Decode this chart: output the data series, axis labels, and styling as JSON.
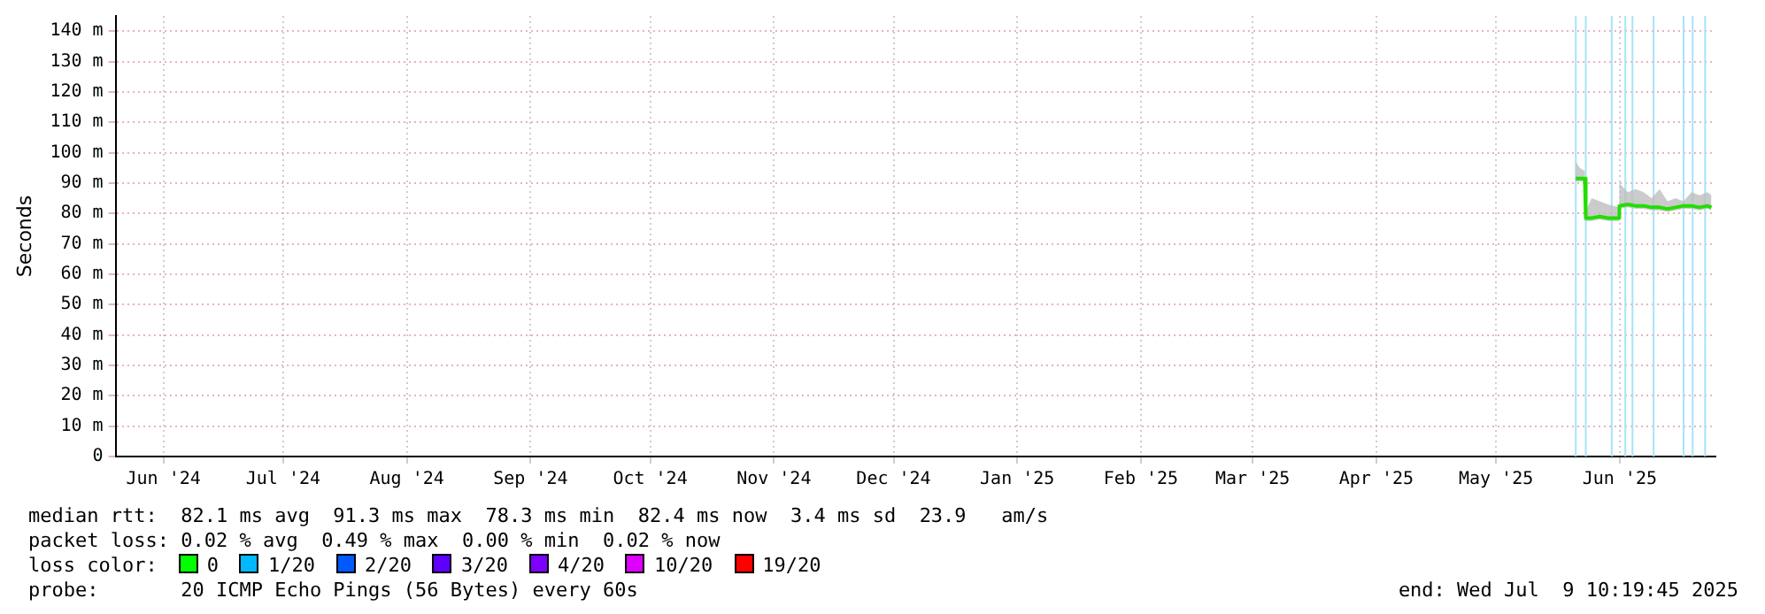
{
  "chart_data": {
    "type": "line",
    "ylabel": "Seconds",
    "xlim": [
      "2024-06-03",
      "2025-07-09"
    ],
    "xticks": [
      {
        "value": "2024-06-15",
        "label": "Jun '24"
      },
      {
        "value": "2024-07-15",
        "label": "Jul '24"
      },
      {
        "value": "2024-08-15",
        "label": "Aug '24"
      },
      {
        "value": "2024-09-15",
        "label": "Sep '24"
      },
      {
        "value": "2024-10-15",
        "label": "Oct '24"
      },
      {
        "value": "2024-11-15",
        "label": "Nov '24"
      },
      {
        "value": "2024-12-15",
        "label": "Dec '24"
      },
      {
        "value": "2025-01-15",
        "label": "Jan '25"
      },
      {
        "value": "2025-02-15",
        "label": "Feb '25"
      },
      {
        "value": "2025-03-15",
        "label": "Mar '25"
      },
      {
        "value": "2025-04-15",
        "label": "Apr '25"
      },
      {
        "value": "2025-05-15",
        "label": "May '25"
      },
      {
        "value": "2025-06-15",
        "label": "Jun '25"
      }
    ],
    "ylim": [
      0,
      145
    ],
    "yticks": [
      0,
      {
        "value": 10,
        "label": "10 m"
      },
      {
        "value": 20,
        "label": "20 m"
      },
      {
        "value": 30,
        "label": "30 m"
      },
      {
        "value": 40,
        "label": "40 m"
      },
      {
        "value": 50,
        "label": "50 m"
      },
      {
        "value": 60,
        "label": "60 m"
      },
      {
        "value": 70,
        "label": "70 m"
      },
      {
        "value": 80,
        "label": "80 m"
      },
      {
        "value": 90,
        "label": "90 m"
      },
      {
        "value": 100,
        "label": "100 m"
      },
      {
        "value": 110,
        "label": "110 m"
      },
      {
        "value": 120,
        "label": "120 m"
      },
      {
        "value": 130,
        "label": "130 m"
      },
      {
        "value": 140,
        "label": "140 m"
      }
    ],
    "grid": true,
    "legend": false,
    "marker": "none",
    "line_style": "solid",
    "x": [
      "2025-06-04",
      "2025-06-05",
      "2025-06-06T06:00",
      "2025-06-06T12:00",
      "2025-06-08",
      "2025-06-10",
      "2025-06-12",
      "2025-06-14T18:00",
      "2025-06-14T20:00",
      "2025-06-15",
      "2025-06-17",
      "2025-06-19",
      "2025-06-21",
      "2025-06-23",
      "2025-06-25",
      "2025-06-27",
      "2025-06-29",
      "2025-07-01",
      "2025-07-03",
      "2025-07-05",
      "2025-07-07",
      "2025-07-08"
    ],
    "series": [
      {
        "color": "#22dd00",
        "values": [
          91.5,
          91.5,
          91.5,
          78.5,
          78.5,
          79,
          78.5,
          78.5,
          82,
          82.5,
          83,
          82.5,
          82.5,
          82,
          82,
          81.5,
          82,
          82.5,
          82.5,
          82,
          82.5,
          82
        ],
        "lower": [
          90.5,
          90.5,
          90.5,
          77.5,
          77.5,
          78,
          77.5,
          77.5,
          81,
          81.5,
          82,
          81.5,
          81.5,
          81,
          81,
          80.5,
          81,
          81.5,
          81.5,
          81,
          81.5,
          81
        ],
        "upper": [
          97,
          95,
          94,
          81,
          85,
          84,
          83,
          82,
          82,
          90,
          87,
          88,
          87,
          85,
          88,
          84,
          85,
          84,
          87,
          86,
          87,
          86
        ]
      }
    ],
    "ref_lines": [
      {
        "axis": "x",
        "value": "2025-06-04",
        "color": "#a6e4f8"
      },
      {
        "axis": "x",
        "value": "2025-06-06T12:00",
        "color": "#a6e4f8"
      },
      {
        "axis": "x",
        "value": "2025-06-13",
        "color": "#a6e4f8"
      },
      {
        "axis": "x",
        "value": "2025-06-16T10:00",
        "color": "#a6e4f8"
      },
      {
        "axis": "x",
        "value": "2025-06-18T05:00",
        "color": "#a6e4f8"
      },
      {
        "axis": "x",
        "value": "2025-06-23T12:00",
        "color": "#a6e4f8"
      },
      {
        "axis": "x",
        "value": "2025-07-01",
        "color": "#a6e4f8"
      },
      {
        "axis": "x",
        "value": "2025-07-03T07:00",
        "color": "#a6e4f8"
      },
      {
        "axis": "x",
        "value": "2025-07-06T10:00",
        "color": "#a6e4f8"
      }
    ],
    "annotations": [
      "median rtt:  82.1 ms avg  91.3 ms max  78.3 ms min  82.4 ms now  3.4 ms sd  23.9   am/s",
      "packet loss: 0.02 % avg  0.49 % max  0.00 % min  0.02 % now",
      "loss color:",
      "0",
      "1/20",
      "2/20",
      "3/20",
      "4/20",
      "10/20",
      "19/20",
      "probe:       20 ICMP Echo Pings (56 Bytes) every 60s",
      "end: Wed Jul  9 10:19:45 2025"
    ]
  }
}
